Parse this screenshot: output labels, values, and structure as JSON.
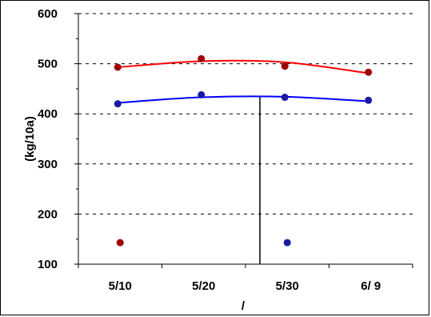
{
  "chart_data": {
    "type": "scatter",
    "ylabel": "(kg/10a)",
    "xlabel": "/",
    "ylim": [
      100,
      600
    ],
    "yticks": [
      100,
      200,
      300,
      400,
      500,
      600
    ],
    "categories": [
      "5/10",
      "5/20",
      "5/30",
      "6/ 9"
    ],
    "grid": "horizontal dashed",
    "series": [
      {
        "color": "#a00000",
        "points": [
          {
            "x": "5/10",
            "y": 493
          },
          {
            "x": "5/20",
            "y": 510
          },
          {
            "x": "5/30",
            "y": 495
          },
          {
            "x": "6/ 9",
            "y": 483
          }
        ],
        "fit_color": "#ff0000",
        "fit": [
          {
            "x": "5/10",
            "y": 493
          },
          {
            "x": "5/20",
            "y": 505
          },
          {
            "x": "5/30",
            "y": 503
          },
          {
            "x": "6/ 9",
            "y": 481
          }
        ]
      },
      {
        "color": "#1a1aa0",
        "points": [
          {
            "x": "5/10",
            "y": 420
          },
          {
            "x": "5/20",
            "y": 438
          },
          {
            "x": "5/30",
            "y": 433
          },
          {
            "x": "6/ 9",
            "y": 427
          }
        ],
        "fit_color": "#0000ff",
        "fit": [
          {
            "x": "5/10",
            "y": 422
          },
          {
            "x": "5/20",
            "y": 433
          },
          {
            "x": "5/30",
            "y": 434
          },
          {
            "x": "6/ 9",
            "y": 425
          }
        ]
      }
    ],
    "extra_points": [
      {
        "x": "5/10",
        "y": 143,
        "color": "#a00000"
      },
      {
        "x": "5/30",
        "y": 143,
        "color": "#1a1aa0"
      }
    ],
    "vertical_line": {
      "x_between": [
        "5/20",
        "5/30"
      ],
      "y_top": 435,
      "y_bottom": 100
    }
  }
}
